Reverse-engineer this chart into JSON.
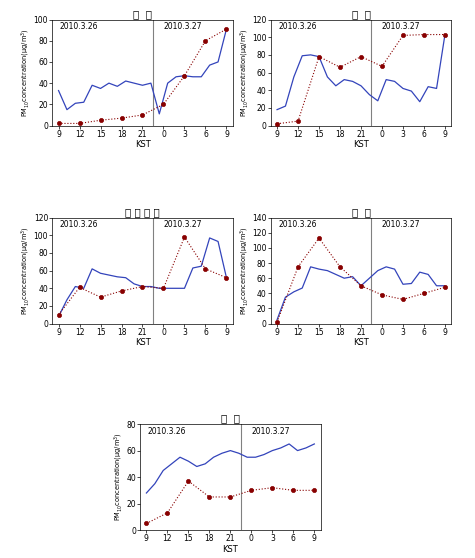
{
  "stations": [
    {
      "title": "진  도",
      "ylim": [
        0,
        100
      ],
      "yticks": [
        0,
        20,
        40,
        60,
        80,
        100
      ],
      "obs": [
        33,
        15,
        21,
        22,
        38,
        35,
        40,
        37,
        42,
        40,
        38,
        40,
        11,
        40,
        46,
        47,
        46,
        46,
        57,
        60,
        91
      ],
      "sim": [
        2,
        2,
        2,
        2,
        3,
        4,
        5,
        6,
        6,
        7,
        7,
        8,
        10,
        20,
        30,
        45,
        47,
        70,
        75,
        80,
        91
      ]
    },
    {
      "title": "진  주",
      "ylim": [
        0,
        120
      ],
      "yticks": [
        0,
        20,
        40,
        60,
        80,
        100,
        120
      ],
      "obs": [
        18,
        22,
        55,
        79,
        80,
        78,
        55,
        45,
        52,
        50,
        45,
        35,
        28,
        52,
        50,
        42,
        39,
        27,
        44,
        42,
        103
      ],
      "sim": [
        2,
        3,
        4,
        5,
        7,
        75,
        78,
        79,
        65,
        66,
        75,
        78,
        78,
        67,
        74,
        75,
        102,
        103,
        104,
        103,
        103
      ]
    },
    {
      "title": "격 렸 비 도",
      "ylim": [
        0,
        120
      ],
      "yticks": [
        0,
        20,
        40,
        60,
        80,
        100,
        120
      ],
      "obs": [
        8,
        27,
        42,
        40,
        62,
        57,
        55,
        53,
        52,
        45,
        42,
        42,
        40,
        40,
        40,
        40,
        63,
        65,
        97,
        93,
        52
      ],
      "sim": [
        10,
        20,
        40,
        41,
        42,
        35,
        30,
        22,
        30,
        37,
        42,
        40,
        42,
        40,
        41,
        42,
        98,
        95,
        92,
        62,
        52
      ]
    },
    {
      "title": "천  안",
      "ylim": [
        0,
        140
      ],
      "yticks": [
        0,
        20,
        40,
        60,
        80,
        100,
        120,
        140
      ],
      "obs": [
        5,
        35,
        42,
        47,
        75,
        72,
        70,
        65,
        60,
        62,
        50,
        60,
        70,
        75,
        72,
        52,
        53,
        68,
        65,
        50,
        50
      ],
      "sim": [
        2,
        25,
        45,
        75,
        108,
        110,
        113,
        112,
        70,
        75,
        72,
        75,
        50,
        38,
        30,
        25,
        32,
        42,
        47,
        40,
        48
      ]
    },
    {
      "title": "영  덕",
      "ylim": [
        0,
        80
      ],
      "yticks": [
        0,
        20,
        40,
        60,
        80
      ],
      "obs": [
        28,
        35,
        45,
        50,
        55,
        52,
        48,
        50,
        55,
        58,
        60,
        58,
        55,
        55,
        57,
        60,
        62,
        65,
        60,
        62,
        65
      ],
      "sim": [
        5,
        10,
        12,
        13,
        35,
        36,
        37,
        38,
        25,
        25,
        25,
        25,
        25,
        30,
        31,
        30,
        32,
        35,
        38,
        30,
        30
      ]
    }
  ],
  "tick_labels": [
    "9",
    "12",
    "15",
    "18",
    "21",
    "0",
    "3",
    "6",
    "9"
  ],
  "divider_idx": 12,
  "obs_color": "#3344bb",
  "sim_color": "#880000",
  "date1_label": "2010.3.26",
  "date2_label": "2010.3.27",
  "xlabel": "KST",
  "ylabel": "PM10concentration(μg/m³)"
}
